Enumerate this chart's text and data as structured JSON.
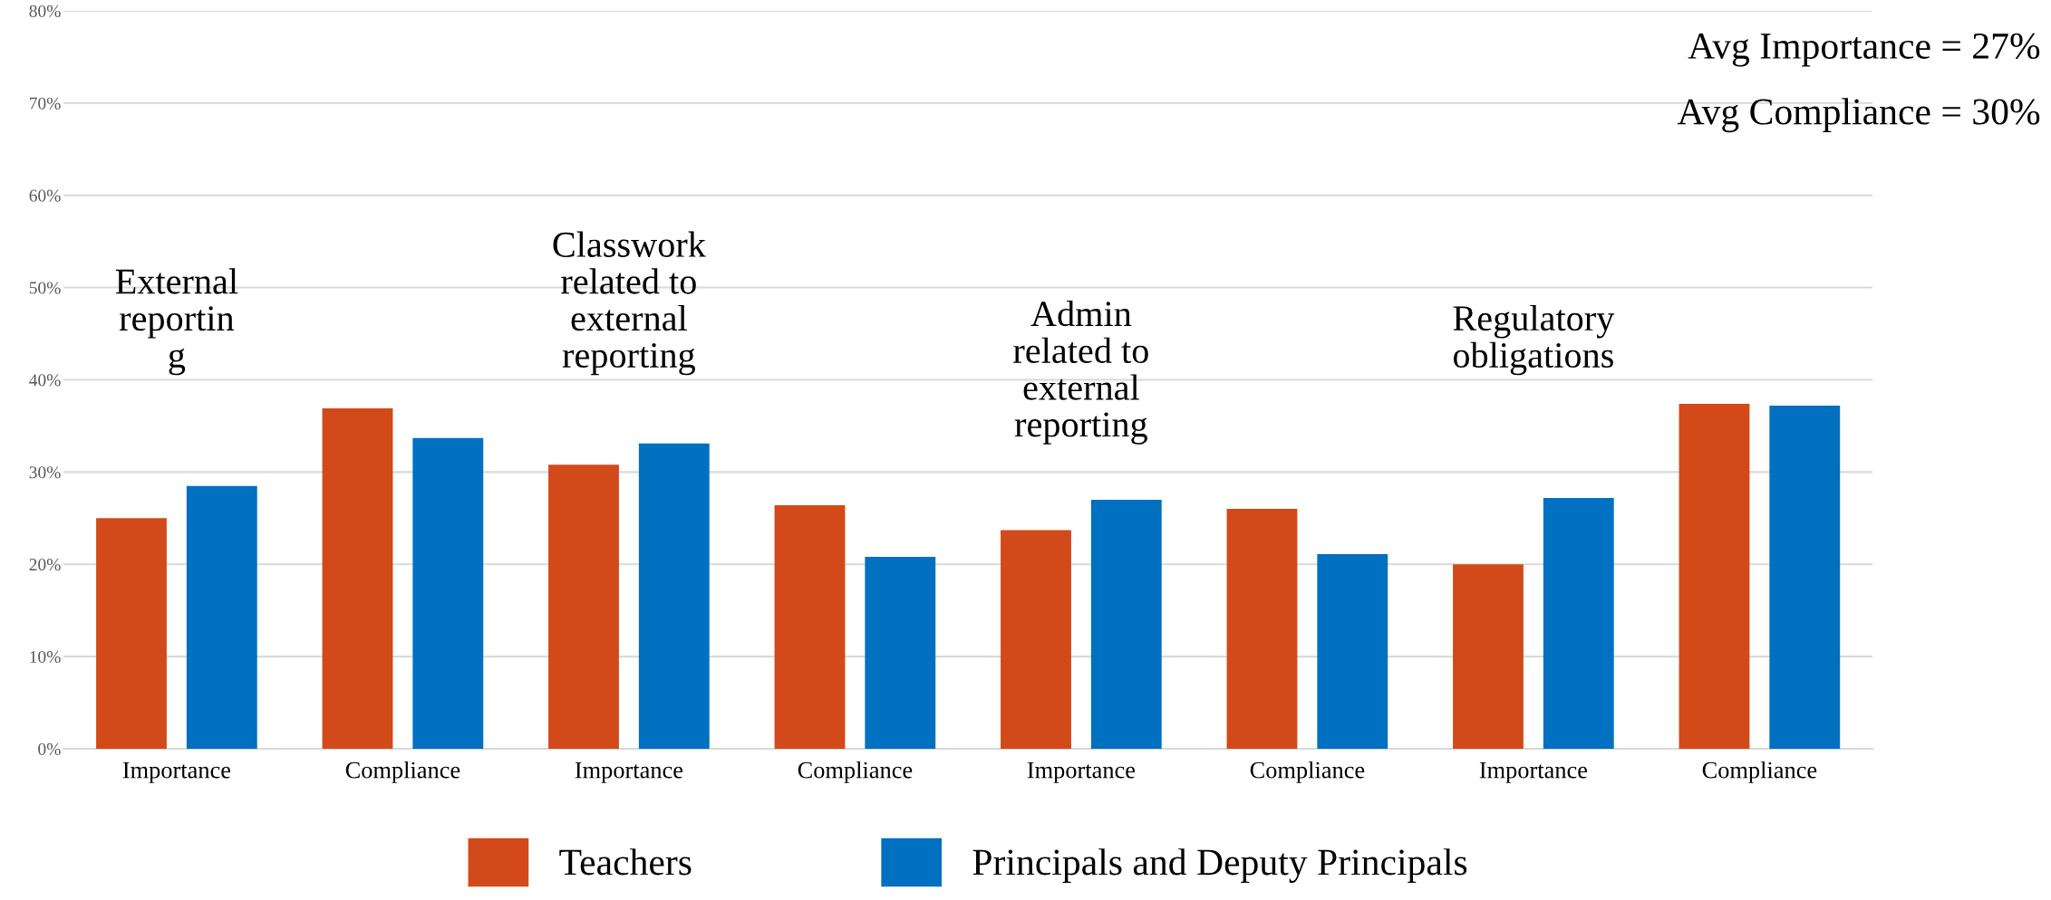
{
  "chart_data": {
    "type": "bar",
    "categories": [
      "Importance",
      "Compliance",
      "Importance",
      "Compliance",
      "Importance",
      "Compliance",
      "Importance",
      "Compliance"
    ],
    "series": [
      {
        "name": "Teachers",
        "color": "#d24a19",
        "values": [
          25.0,
          36.9,
          30.8,
          26.4,
          23.7,
          26.0,
          20.0,
          37.4
        ]
      },
      {
        "name": "Principals and Deputy Principals",
        "color": "#0070c0",
        "values": [
          28.5,
          33.7,
          33.1,
          20.8,
          27.0,
          21.1,
          27.2,
          37.2
        ]
      }
    ],
    "ylim": [
      0,
      80
    ],
    "yticks": [
      {
        "value": 0,
        "label": "0%"
      },
      {
        "value": 10,
        "label": "10%"
      },
      {
        "value": 20,
        "label": "20%"
      },
      {
        "value": 30,
        "label": "30%"
      },
      {
        "value": 40,
        "label": "40%"
      },
      {
        "value": 50,
        "label": "50%"
      },
      {
        "value": 60,
        "label": "60%"
      },
      {
        "value": 70,
        "label": "70%"
      },
      {
        "value": 80,
        "label": "80%"
      }
    ],
    "grid": "y",
    "legend": "bottom",
    "annotations": [
      "External\nreportin\ng",
      "Classwork\nrelated to\nexternal\nreporting",
      "Admin\nrelated to\nexternal\nreporting",
      "Regulatory\nobligations",
      "Avg Importance = 27%",
      "Avg Compliance = 30%"
    ]
  }
}
